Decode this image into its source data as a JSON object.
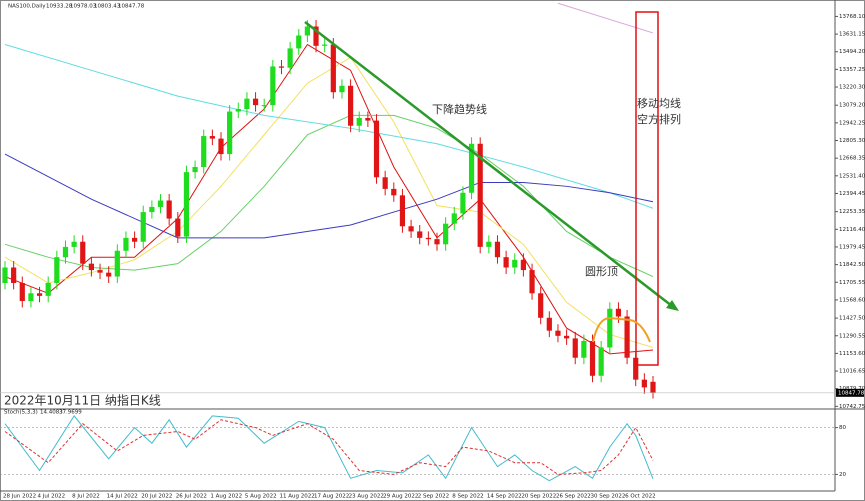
{
  "chart_data": [
    {
      "type": "candlestick",
      "title": "NAS100,Daily",
      "categories": [
        "28 Jun 2022",
        null,
        null,
        null,
        "4 Jul 2022",
        null,
        null,
        null,
        "8 Jul 2022",
        null,
        null,
        null,
        "14 Jul 2022",
        null,
        null,
        null,
        "20 Jul 2022",
        null,
        null,
        null,
        "26 Jul 2022",
        null,
        null,
        null,
        "1 Aug 2022",
        null,
        null,
        null,
        "5 Aug 2022",
        null,
        null,
        null,
        "11 Aug 2022",
        null,
        null,
        null,
        "17 Aug 2022",
        null,
        null,
        null,
        "23 Aug 2022",
        null,
        null,
        null,
        "29 Aug 2022",
        null,
        null,
        null,
        "2 Sep 2022",
        null,
        null,
        null,
        "8 Sep 2022",
        null,
        null,
        null,
        "14 Sep 2022",
        null,
        null,
        null,
        "20 Sep 2022",
        null,
        null,
        null,
        "26 Sep 2022",
        null,
        null,
        null,
        "30 Sep 2022",
        null,
        null,
        null,
        "6 Oct 2022",
        null,
        null,
        null
      ],
      "open": [
        11700,
        11820,
        11700,
        11560,
        11620,
        11600,
        11700,
        11900,
        11980,
        12020,
        11850,
        11800,
        11780,
        11750,
        11950,
        12050,
        12020,
        12250,
        12290,
        12340,
        12200,
        12060,
        12560,
        12600,
        12840,
        12820,
        12700,
        13030,
        13050,
        13130,
        13080,
        13080,
        13380,
        13370,
        13520,
        13620,
        13690,
        13540,
        13550,
        13180,
        13230,
        12920,
        12980,
        12960,
        12520,
        12430,
        12380,
        12140,
        12100,
        12050,
        12040,
        12000,
        12160,
        12240,
        12400,
        12780,
        11980,
        12020,
        11900,
        11820,
        11880,
        11800,
        11620,
        11430,
        11330,
        11290,
        11270,
        11120,
        11250,
        10980,
        11200,
        11500,
        11440,
        11120,
        10950,
        10933.28
      ],
      "high": [
        11870,
        11870,
        11750,
        11670,
        11670,
        11750,
        11950,
        12030,
        12070,
        12070,
        11900,
        11850,
        11830,
        12000,
        12100,
        12100,
        12300,
        12340,
        12390,
        12390,
        12250,
        12610,
        12650,
        12890,
        12890,
        12870,
        13080,
        13100,
        13180,
        13180,
        13130,
        13430,
        13430,
        13570,
        13670,
        13740,
        13740,
        13600,
        13600,
        13280,
        13280,
        13030,
        13030,
        13010,
        12570,
        12480,
        12430,
        12190,
        12150,
        12100,
        12090,
        12210,
        12290,
        12450,
        12830,
        12830,
        12070,
        12070,
        11950,
        11930,
        11930,
        11850,
        11670,
        11480,
        11380,
        11340,
        11320,
        11300,
        11300,
        11250,
        11550,
        11550,
        11490,
        11170,
        11000,
        10978.03
      ],
      "low": [
        11650,
        11650,
        11510,
        11510,
        11550,
        11550,
        11650,
        11850,
        11930,
        11800,
        11750,
        11730,
        11700,
        11700,
        11900,
        11970,
        11970,
        12200,
        12240,
        12150,
        12010,
        12010,
        12510,
        12550,
        12770,
        12650,
        12650,
        12980,
        13000,
        13030,
        13030,
        13030,
        13320,
        13320,
        13470,
        13570,
        13490,
        13490,
        13130,
        13130,
        12870,
        12870,
        12910,
        12470,
        12380,
        12330,
        12090,
        12050,
        12000,
        11990,
        11950,
        11950,
        12110,
        12190,
        12350,
        11930,
        11930,
        11850,
        11770,
        11770,
        11750,
        11570,
        11380,
        11280,
        11240,
        11220,
        11070,
        11070,
        10930,
        10930,
        11150,
        11390,
        11070,
        10900,
        10840,
        10803.43
      ],
      "close": [
        11820,
        11700,
        11560,
        11620,
        11600,
        11700,
        11900,
        11980,
        12020,
        11850,
        11800,
        11780,
        11750,
        11950,
        12050,
        12020,
        12250,
        12290,
        12340,
        12200,
        12060,
        12560,
        12600,
        12840,
        12820,
        12700,
        13030,
        13050,
        13130,
        13080,
        13080,
        13380,
        13370,
        13520,
        13620,
        13690,
        13540,
        13550,
        13180,
        13230,
        12920,
        12980,
        12960,
        12520,
        12430,
        12380,
        12140,
        12100,
        12050,
        12040,
        12000,
        12160,
        12240,
        12400,
        12780,
        11980,
        12020,
        11900,
        11820,
        11880,
        11800,
        11620,
        11430,
        11330,
        11290,
        11270,
        11120,
        11250,
        10980,
        11200,
        11500,
        11440,
        11120,
        10950,
        10890,
        10847.78
      ],
      "up_color": "#1edc1e",
      "down_color": "#e01515",
      "series": [
        {
          "color": "#e01010",
          "x": [
            0,
            5,
            10,
            15,
            20,
            25,
            30,
            35,
            40,
            45,
            50,
            55,
            60,
            65,
            70,
            75
          ],
          "values": [
            11750,
            11620,
            11900,
            11900,
            12200,
            12750,
            13050,
            13550,
            13350,
            12600,
            12050,
            12350,
            11900,
            11350,
            11150,
            11180
          ]
        },
        {
          "color": "#f2e060",
          "x": [
            0,
            5,
            10,
            15,
            20,
            25,
            30,
            35,
            40,
            45,
            50,
            55,
            60,
            65,
            70,
            75
          ],
          "values": [
            11900,
            11700,
            11780,
            11880,
            12100,
            12450,
            12850,
            13250,
            13450,
            12950,
            12300,
            12250,
            12000,
            11550,
            11300,
            11200
          ]
        },
        {
          "color": "#66d066",
          "x": [
            0,
            5,
            10,
            15,
            20,
            25,
            30,
            35,
            40,
            45,
            50,
            55,
            60,
            65,
            70,
            75
          ],
          "values": [
            12000,
            11900,
            11820,
            11800,
            11850,
            12100,
            12450,
            12850,
            13000,
            13000,
            12900,
            12700,
            12450,
            12100,
            11900,
            11750
          ]
        },
        {
          "color": "#5fdce0",
          "x": [
            0,
            10,
            20,
            30,
            40,
            50,
            60,
            70,
            75
          ],
          "values": [
            13550,
            13350,
            13150,
            13000,
            12900,
            12780,
            12600,
            12400,
            12280
          ]
        },
        {
          "color": "#3a3ac0",
          "x": [
            0,
            10,
            20,
            30,
            40,
            50,
            55,
            60,
            65,
            70,
            75
          ],
          "values": [
            12700,
            12350,
            12050,
            12050,
            12150,
            12350,
            12480,
            12480,
            12450,
            12400,
            12330
          ]
        },
        {
          "color": "#d8a8d8",
          "x": [
            64,
            75
          ],
          "values": [
            13870,
            13640
          ]
        }
      ],
      "ylim": [
        10730,
        13880
      ],
      "yticks": [
        {
          "value": 13768.1,
          "label": "13768.10"
        },
        13631.15,
        {
          "value": 13494.2,
          "label": "13494.20"
        },
        13357.25,
        {
          "value": 13220.3,
          "label": "13220.30"
        },
        {
          "value": 13079.2,
          "label": "13079.20"
        },
        12942.25,
        {
          "value": 12805.3,
          "label": "12805.30"
        },
        12668.35,
        {
          "value": 12531.4,
          "label": "12531.40"
        },
        12394.45,
        12253.35,
        {
          "value": 12116.4,
          "label": "12116.40"
        },
        11979.45,
        {
          "value": 11842.5,
          "label": "11842.50"
        },
        11705.55,
        {
          "value": 11568.6,
          "label": "11568.60"
        },
        {
          "value": 11427.5,
          "label": "11427.50"
        },
        11290.55,
        {
          "value": 11153.6,
          "label": "11153.60"
        },
        11016.65,
        {
          "value": 10879.7,
          "label": "10879.70"
        },
        10742.75
      ],
      "annotations": {
        "trend": "下降趋势线",
        "top": "圆形顶",
        "ma_line1": "移动均线",
        "ma_line2": "空方排列",
        "caption": "2022年10月11日 纳指日K线"
      }
    },
    {
      "type": "line",
      "title": "Stoch(5,3,3)",
      "series": [
        {
          "color": "#44bbcc",
          "x": [
            0,
            4,
            8,
            12,
            15,
            17,
            19,
            21,
            24,
            27,
            30,
            34,
            37,
            40,
            43,
            46,
            49,
            51,
            54,
            57,
            59,
            61,
            63,
            66,
            68,
            70,
            72,
            73,
            75
          ],
          "values": [
            85,
            25,
            95,
            40,
            80,
            60,
            90,
            55,
            95,
            92,
            60,
            88,
            80,
            15,
            25,
            22,
            45,
            15,
            80,
            30,
            45,
            25,
            12,
            30,
            15,
            55,
            85,
            70,
            14.4083
          ]
        },
        {
          "color": "#e03030",
          "dash": true,
          "x": [
            0,
            5,
            9,
            13,
            16,
            20,
            22,
            25,
            29,
            31,
            35,
            38,
            41,
            45,
            48,
            51,
            53,
            56,
            59,
            62,
            64,
            67,
            69,
            71,
            73,
            75
          ],
          "values": [
            75,
            35,
            85,
            50,
            70,
            75,
            65,
            90,
            80,
            70,
            85,
            65,
            25,
            20,
            35,
            30,
            55,
            50,
            35,
            35,
            20,
            22,
            25,
            45,
            80,
            37.9699
          ]
        }
      ],
      "ylim": [
        0,
        100
      ],
      "yticks": [
        80,
        20
      ]
    }
  ]
}
